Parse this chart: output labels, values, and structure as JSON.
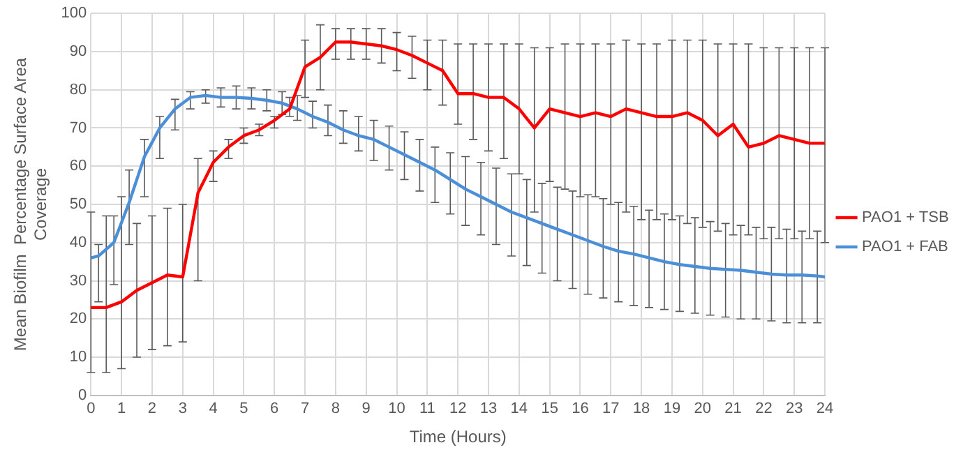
{
  "chart_data": {
    "type": "line",
    "xlabel": "Time (Hours)",
    "ylabel": "Mean Biofilm  Percentage Surface Area Coverage",
    "x": [
      0,
      0.5,
      1,
      1.5,
      2,
      2.5,
      3,
      3.5,
      4,
      4.5,
      5,
      5.5,
      6,
      6.5,
      7,
      7.5,
      8,
      8.5,
      9,
      9.5,
      10,
      10.5,
      11,
      11.5,
      12,
      12.5,
      13,
      13.5,
      14,
      14.5,
      15,
      15.5,
      16,
      16.5,
      17,
      17.5,
      18,
      18.5,
      19,
      19.5,
      20,
      20.5,
      21,
      21.5,
      22,
      22.5,
      23,
      23.5,
      24
    ],
    "series": [
      {
        "name": "PAO1 + TSB",
        "color": "#ff0000",
        "values": [
          23,
          23,
          24.5,
          27.5,
          29.5,
          31.5,
          31,
          53,
          61,
          65,
          68,
          69.5,
          72,
          75,
          86,
          88.5,
          92.5,
          92.5,
          92,
          91.5,
          90.5,
          89,
          87,
          85,
          79,
          79,
          78,
          78,
          75,
          70,
          75,
          74,
          73,
          74,
          73,
          75,
          74,
          73,
          73,
          74,
          72,
          68,
          71,
          65,
          66,
          68,
          67,
          66,
          66
        ],
        "errors": [
          [
            6,
            48
          ],
          [
            6,
            47
          ],
          [
            7,
            52
          ],
          [
            10,
            45
          ],
          [
            12,
            47
          ],
          [
            13,
            49
          ],
          [
            14,
            50
          ],
          [
            30,
            62
          ],
          [
            56,
            64
          ],
          [
            62,
            67
          ],
          [
            66,
            70
          ],
          [
            68,
            71
          ],
          [
            70,
            73
          ],
          [
            73,
            78
          ],
          [
            78,
            93
          ],
          [
            80,
            97
          ],
          [
            88,
            96
          ],
          [
            88,
            96
          ],
          [
            88,
            96
          ],
          [
            87,
            96
          ],
          [
            85,
            95
          ],
          [
            83,
            94
          ],
          [
            80,
            93
          ],
          [
            76,
            93
          ],
          [
            71,
            92
          ],
          [
            67,
            92
          ],
          [
            64,
            92
          ],
          [
            62,
            92
          ],
          [
            58,
            92
          ],
          [
            48,
            91
          ],
          [
            56,
            91
          ],
          [
            54,
            92
          ],
          [
            52,
            92
          ],
          [
            52,
            92
          ],
          [
            50,
            92
          ],
          [
            48,
            93
          ],
          [
            46,
            92
          ],
          [
            46,
            92
          ],
          [
            46,
            93
          ],
          [
            45,
            93
          ],
          [
            44,
            93
          ],
          [
            43,
            92
          ],
          [
            42,
            92
          ],
          [
            42,
            92
          ],
          [
            41,
            91
          ],
          [
            41,
            91
          ],
          [
            41,
            91
          ],
          [
            41,
            91
          ],
          [
            40,
            91
          ]
        ]
      },
      {
        "name": "PAO1 + FAB",
        "color": "#4a8fd8",
        "x": [
          0,
          0.25,
          0.75,
          1.25,
          1.75,
          2.25,
          2.75,
          3.25,
          3.75,
          4.25,
          4.75,
          5.25,
          5.75,
          6.25,
          6.75,
          7.25,
          7.75,
          8.25,
          8.75,
          9.25,
          9.75,
          10.25,
          10.75,
          11.25,
          11.75,
          12.25,
          12.75,
          13.25,
          13.75,
          14.25,
          14.75,
          15.25,
          15.75,
          16.25,
          16.75,
          17.25,
          17.75,
          18.25,
          18.75,
          19.25,
          19.75,
          20.25,
          20.75,
          21.25,
          21.75,
          22.25,
          22.75,
          23.25,
          23.75,
          24
        ],
        "values": [
          36,
          36.5,
          40,
          50.5,
          62.5,
          70,
          75,
          78,
          78.5,
          78,
          78,
          77.75,
          77.25,
          76.5,
          75,
          73,
          71.5,
          69.5,
          68,
          67,
          65,
          63,
          61,
          59,
          56.5,
          54,
          52,
          50,
          48,
          46.5,
          45,
          43.5,
          42,
          40.5,
          39,
          37.75,
          37,
          36,
          35,
          34.25,
          33.75,
          33.25,
          33,
          32.75,
          32.25,
          31.75,
          31.5,
          31.5,
          31.25,
          31
        ],
        "errors": [
          null,
          [
            24.5,
            39.5
          ],
          [
            29,
            47
          ],
          [
            39.5,
            59
          ],
          [
            52,
            67
          ],
          [
            62,
            73
          ],
          [
            69.5,
            77.5
          ],
          [
            75,
            79.5
          ],
          [
            76.5,
            80
          ],
          [
            75.5,
            80.5
          ],
          [
            75,
            81
          ],
          [
            75,
            80.5
          ],
          [
            74.5,
            80
          ],
          [
            73.5,
            79.5
          ],
          [
            72,
            78.5
          ],
          [
            70,
            77
          ],
          [
            68,
            76
          ],
          [
            66,
            74.5
          ],
          [
            64,
            73
          ],
          [
            61.5,
            72
          ],
          [
            59,
            70.5
          ],
          [
            56.5,
            69
          ],
          [
            53.5,
            67
          ],
          [
            50.5,
            65
          ],
          [
            47.5,
            63.5
          ],
          [
            44.5,
            62.5
          ],
          [
            42,
            61
          ],
          [
            39.5,
            59.5
          ],
          [
            36.5,
            58
          ],
          [
            34,
            56.5
          ],
          [
            32,
            55.5
          ],
          [
            30,
            54.5
          ],
          [
            28,
            53.5
          ],
          [
            26.5,
            52.5
          ],
          [
            25.5,
            51.5
          ],
          [
            24.5,
            50.5
          ],
          [
            23.5,
            49.5
          ],
          [
            23,
            48.5
          ],
          [
            22.5,
            47.5
          ],
          [
            22,
            47
          ],
          [
            21.5,
            46.5
          ],
          [
            21,
            45.5
          ],
          [
            20.5,
            45
          ],
          [
            20,
            44.5
          ],
          [
            20,
            44
          ],
          [
            19.5,
            44
          ],
          [
            19,
            43.5
          ],
          [
            19,
            43
          ],
          [
            19,
            43
          ],
          null
        ]
      }
    ],
    "xlim": [
      0,
      24
    ],
    "xticks": [
      0,
      1,
      2,
      3,
      4,
      5,
      6,
      7,
      8,
      9,
      10,
      11,
      12,
      13,
      14,
      15,
      16,
      17,
      18,
      19,
      20,
      21,
      22,
      23,
      24
    ],
    "ylim": [
      0,
      100
    ],
    "yticks": [
      0,
      10,
      20,
      30,
      40,
      50,
      60,
      70,
      80,
      90,
      100
    ],
    "grid": true,
    "legend": "right",
    "marker": "none",
    "line_style": "solid"
  }
}
